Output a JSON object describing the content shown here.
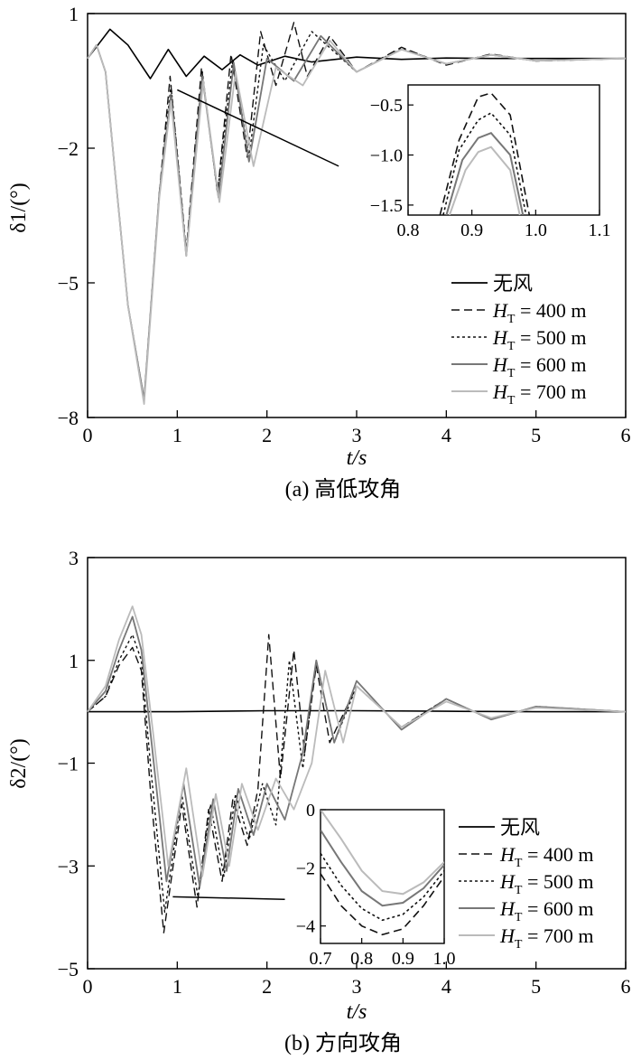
{
  "figure": {
    "panels": [
      {
        "caption": "(a) 高低攻角",
        "xlabel": "t/s",
        "ylabel": "δ1/(°)",
        "legend": [
          "无风",
          "HT = 400 m",
          "HT = 500 m",
          "HT = 600 m",
          "HT = 700 m"
        ]
      },
      {
        "caption": "(b) 方向攻角",
        "xlabel": "t/s",
        "ylabel": "δ2/(°)",
        "legend": [
          "无风",
          "HT = 400 m",
          "HT = 500 m",
          "HT = 600 m",
          "HT = 700 m"
        ]
      }
    ]
  },
  "series_colors": {
    "无风": "#000000",
    "HT = 400 m": "#111111",
    "HT = 500 m": "#111111",
    "HT = 600 m": "#777777",
    "HT = 700 m": "#bbbbbb"
  },
  "chart_data": [
    {
      "type": "line",
      "xlabel": "t/s",
      "ylabel": "δ1/(°)",
      "xlim": [
        0,
        6
      ],
      "ylim": [
        -8,
        1
      ],
      "xticks": [
        0,
        1,
        2,
        3,
        4,
        5,
        6
      ],
      "yticks": [
        1,
        -2,
        -5,
        -8
      ],
      "legend_position": "bottom-right",
      "series": [
        {
          "name": "无风",
          "style": "solid",
          "x": [
            0,
            0.25,
            0.45,
            0.7,
            0.9,
            1.1,
            1.3,
            1.5,
            1.7,
            1.9,
            2.2,
            2.5,
            3,
            3.5,
            4,
            4.5,
            5,
            6
          ],
          "y": [
            0,
            0.65,
            0.3,
            -0.45,
            0.2,
            -0.4,
            0.05,
            -0.25,
            0.08,
            -0.15,
            0.05,
            -0.08,
            0.03,
            -0.02,
            0.01,
            0,
            0,
            0
          ]
        },
        {
          "name": "HT = 400 m",
          "style": "dashed",
          "x": [
            0,
            0.1,
            0.2,
            0.3,
            0.45,
            0.63,
            0.8,
            0.92,
            1.1,
            1.27,
            1.45,
            1.6,
            1.78,
            1.93,
            2.1,
            2.3,
            2.45,
            2.7,
            3,
            3.5,
            4,
            4.5,
            5,
            6
          ],
          "y": [
            0,
            0.3,
            -0.3,
            -2.4,
            -5.5,
            -7.6,
            -3,
            -0.4,
            -4.3,
            -0.2,
            -3.0,
            0.1,
            -2.2,
            0.6,
            -0.6,
            0.8,
            -0.4,
            0.5,
            -0.3,
            0.25,
            -0.15,
            0.1,
            -0.06,
            0
          ]
        },
        {
          "name": "HT = 500 m",
          "style": "dotted",
          "x": [
            0,
            0.1,
            0.2,
            0.3,
            0.45,
            0.63,
            0.8,
            0.93,
            1.1,
            1.28,
            1.45,
            1.62,
            1.8,
            1.96,
            2.2,
            2.5,
            3,
            3.5,
            4,
            4.5,
            5,
            6
          ],
          "y": [
            0,
            0.3,
            -0.3,
            -2.4,
            -5.5,
            -7.6,
            -3,
            -0.6,
            -4.3,
            -0.3,
            -3.0,
            0.0,
            -2.2,
            0.3,
            -0.5,
            0.6,
            -0.3,
            0.22,
            -0.12,
            0.08,
            -0.05,
            0
          ]
        },
        {
          "name": "HT = 600 m",
          "style": "solid",
          "x": [
            0,
            0.1,
            0.2,
            0.3,
            0.45,
            0.63,
            0.8,
            0.93,
            1.1,
            1.28,
            1.46,
            1.63,
            1.8,
            2.0,
            2.3,
            2.6,
            3,
            3.5,
            4,
            4.5,
            5,
            6
          ],
          "y": [
            0,
            0.3,
            -0.3,
            -2.4,
            -5.5,
            -7.6,
            -3,
            -0.8,
            -4.4,
            -0.4,
            -3.1,
            -0.1,
            -2.3,
            0.0,
            -0.5,
            0.5,
            -0.3,
            0.2,
            -0.12,
            0.08,
            -0.05,
            0
          ]
        },
        {
          "name": "HT = 700 m",
          "style": "solid",
          "x": [
            0,
            0.1,
            0.2,
            0.3,
            0.45,
            0.63,
            0.8,
            0.93,
            1.1,
            1.29,
            1.47,
            1.65,
            1.85,
            2.1,
            2.4,
            2.7,
            3,
            3.5,
            4,
            4.5,
            5,
            6
          ],
          "y": [
            0,
            0.3,
            -0.3,
            -2.4,
            -5.5,
            -7.7,
            -3.1,
            -0.95,
            -4.4,
            -0.5,
            -3.2,
            -0.3,
            -2.4,
            -0.2,
            -0.6,
            0.4,
            -0.3,
            0.2,
            -0.12,
            0.08,
            -0.05,
            0
          ]
        }
      ],
      "annotation_line": {
        "x": [
          1.0,
          2.8
        ],
        "y": [
          -0.7,
          -2.4
        ]
      },
      "inset": {
        "xlim": [
          0.8,
          1.1
        ],
        "ylim": [
          -1.6,
          -0.3
        ],
        "xticks": [
          0.8,
          0.9,
          1.0,
          1.1
        ],
        "yticks": [
          -0.5,
          -1.0,
          -1.5
        ],
        "series": [
          {
            "name": "HT = 400 m",
            "style": "dashed",
            "x": [
              0.85,
              0.88,
              0.91,
              0.93,
              0.96,
              0.99
            ],
            "y": [
              -1.6,
              -0.85,
              -0.42,
              -0.38,
              -0.6,
              -1.6
            ]
          },
          {
            "name": "HT = 500 m",
            "style": "dotted",
            "x": [
              0.855,
              0.88,
              0.91,
              0.93,
              0.96,
              0.985
            ],
            "y": [
              -1.6,
              -0.95,
              -0.65,
              -0.58,
              -0.8,
              -1.6
            ]
          },
          {
            "name": "HT = 600 m",
            "style": "solid",
            "x": [
              0.86,
              0.885,
              0.91,
              0.93,
              0.96,
              0.98
            ],
            "y": [
              -1.6,
              -1.05,
              -0.83,
              -0.78,
              -1.0,
              -1.6
            ]
          },
          {
            "name": "HT = 700 m",
            "style": "solid",
            "x": [
              0.865,
              0.89,
              0.91,
              0.93,
              0.96,
              0.975
            ],
            "y": [
              -1.6,
              -1.15,
              -0.97,
              -0.92,
              -1.15,
              -1.6
            ]
          }
        ]
      }
    },
    {
      "type": "line",
      "xlabel": "t/s",
      "ylabel": "δ2/(°)",
      "xlim": [
        0,
        6
      ],
      "ylim": [
        -5,
        3
      ],
      "xticks": [
        0,
        1,
        2,
        3,
        4,
        5,
        6
      ],
      "yticks": [
        3,
        1,
        -1,
        -3,
        -5
      ],
      "legend_position": "bottom-right",
      "series": [
        {
          "name": "无风",
          "style": "solid",
          "x": [
            0,
            1,
            2,
            3,
            4,
            5,
            6
          ],
          "y": [
            0,
            0,
            0.02,
            0.02,
            0.01,
            0,
            0
          ]
        },
        {
          "name": "HT = 400 m",
          "style": "dashed",
          "x": [
            0,
            0.2,
            0.35,
            0.5,
            0.6,
            0.7,
            0.85,
            1.05,
            1.22,
            1.35,
            1.5,
            1.62,
            1.78,
            1.9,
            2.02,
            2.15,
            2.3,
            2.42,
            2.55,
            2.7,
            3,
            3.5,
            4,
            4.5,
            5,
            6
          ],
          "y": [
            0,
            0.3,
            0.9,
            1.25,
            0.8,
            -1.5,
            -4.3,
            -1.8,
            -3.8,
            -1.9,
            -3.3,
            -1.7,
            -2.6,
            -1.5,
            1.5,
            -1.3,
            1.2,
            -0.8,
            0.9,
            -0.6,
            0.5,
            -0.3,
            0.25,
            -0.15,
            0.1,
            0
          ]
        },
        {
          "name": "HT = 500 m",
          "style": "dotted",
          "x": [
            0,
            0.2,
            0.35,
            0.5,
            0.6,
            0.7,
            0.86,
            1.05,
            1.23,
            1.37,
            1.52,
            1.65,
            1.8,
            1.95,
            2.1,
            2.25,
            2.4,
            2.55,
            2.75,
            3,
            3.5,
            4,
            4.5,
            5,
            6
          ],
          "y": [
            0,
            0.3,
            1.0,
            1.5,
            1.0,
            -1.0,
            -3.9,
            -1.6,
            -3.6,
            -1.8,
            -3.2,
            -1.6,
            -2.5,
            -1.4,
            -2.2,
            1.0,
            -1.1,
            1.0,
            -0.6,
            0.5,
            -0.3,
            0.25,
            -0.15,
            0.1,
            0
          ]
        },
        {
          "name": "HT = 600 m",
          "style": "solid",
          "x": [
            0,
            0.2,
            0.35,
            0.5,
            0.6,
            0.72,
            0.88,
            1.07,
            1.25,
            1.4,
            1.55,
            1.68,
            1.85,
            2.0,
            2.2,
            2.4,
            2.55,
            2.75,
            3,
            3.5,
            4,
            4.5,
            5,
            6
          ],
          "y": [
            0,
            0.4,
            1.2,
            1.85,
            1.2,
            -0.7,
            -3.3,
            -1.4,
            -3.4,
            -1.7,
            -3.1,
            -1.5,
            -2.4,
            -1.4,
            -2.1,
            -0.8,
            1.0,
            -0.6,
            0.6,
            -0.35,
            0.25,
            -0.15,
            0.1,
            0
          ]
        },
        {
          "name": "HT = 700 m",
          "style": "solid",
          "x": [
            0,
            0.2,
            0.35,
            0.5,
            0.6,
            0.73,
            0.9,
            1.1,
            1.28,
            1.43,
            1.58,
            1.72,
            1.9,
            2.1,
            2.3,
            2.5,
            2.65,
            2.85,
            3,
            3.5,
            4,
            4.5,
            5,
            6
          ],
          "y": [
            0,
            0.5,
            1.4,
            2.05,
            1.5,
            -0.4,
            -3.0,
            -1.1,
            -3.2,
            -1.6,
            -3.0,
            -1.4,
            -2.3,
            -1.3,
            -1.9,
            -1.0,
            0.8,
            -0.6,
            0.5,
            -0.3,
            0.2,
            -0.12,
            0.08,
            0
          ]
        }
      ],
      "annotation_line": {
        "x": [
          0.95,
          2.2
        ],
        "y": [
          -3.6,
          -3.65
        ]
      },
      "inset": {
        "xlim": [
          0.7,
          1.0
        ],
        "ylim": [
          -4.6,
          0
        ],
        "xticks": [
          0.7,
          0.8,
          0.9,
          1.0
        ],
        "yticks": [
          0,
          -2,
          -4
        ],
        "series": [
          {
            "name": "HT = 400 m",
            "style": "dashed",
            "x": [
              0.7,
              0.75,
              0.8,
              0.85,
              0.9,
              0.95,
              1.0
            ],
            "y": [
              -2.2,
              -3.3,
              -4.0,
              -4.3,
              -4.1,
              -3.3,
              -2.3
            ]
          },
          {
            "name": "HT = 500 m",
            "style": "dotted",
            "x": [
              0.7,
              0.75,
              0.8,
              0.85,
              0.9,
              0.95,
              1.0
            ],
            "y": [
              -1.5,
              -2.6,
              -3.4,
              -3.8,
              -3.6,
              -3.0,
              -2.1
            ]
          },
          {
            "name": "HT = 600 m",
            "style": "solid",
            "x": [
              0.7,
              0.75,
              0.8,
              0.85,
              0.9,
              0.95,
              1.0
            ],
            "y": [
              -0.7,
              -1.8,
              -2.8,
              -3.3,
              -3.2,
              -2.7,
              -1.9
            ]
          },
          {
            "name": "HT = 700 m",
            "style": "solid",
            "x": [
              0.7,
              0.75,
              0.8,
              0.85,
              0.9,
              0.95,
              1.0
            ],
            "y": [
              0,
              -1.0,
              -2.1,
              -2.8,
              -2.9,
              -2.5,
              -1.8
            ]
          }
        ]
      }
    }
  ]
}
